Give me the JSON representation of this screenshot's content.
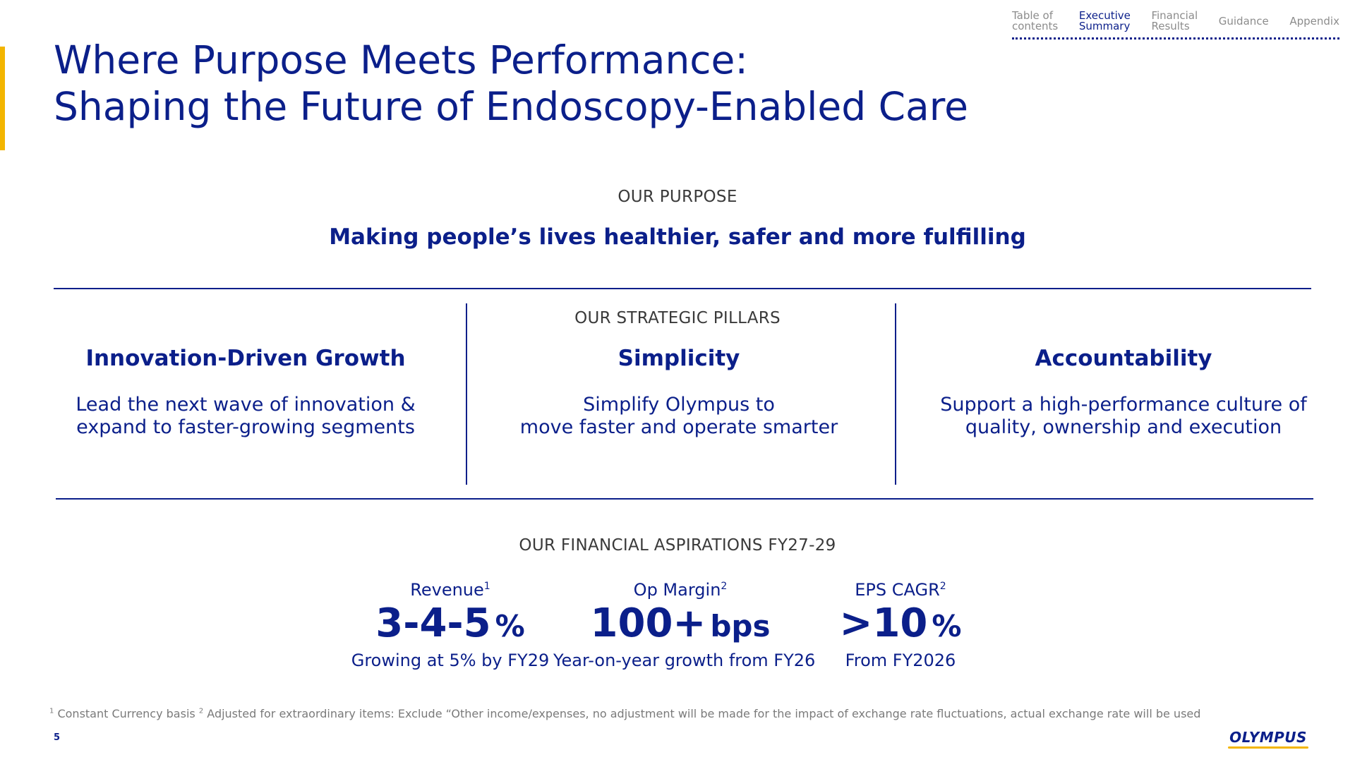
{
  "nav": {
    "items": [
      {
        "label": "Table of\ncontents",
        "active": false
      },
      {
        "label": "Executive\nSummary",
        "active": true
      },
      {
        "label": "Financial\nResults",
        "active": false
      },
      {
        "label": "Guidance",
        "active": false
      },
      {
        "label": "Appendix",
        "active": false
      }
    ]
  },
  "title": {
    "line1": "Where Purpose Meets Performance:",
    "line2": "Shaping the Future of Endoscopy-Enabled Care"
  },
  "purpose": {
    "label": "OUR PURPOSE",
    "text": "Making people’s lives healthier, safer and more fulfilling"
  },
  "pillars": {
    "label": "OUR STRATEGIC PILLARS",
    "items": [
      {
        "title": "Innovation-Driven Growth",
        "description": "Lead the next wave of innovation &\nexpand to faster-growing segments"
      },
      {
        "title": "Simplicity",
        "description": "Simplify Olympus to\nmove faster and operate smarter"
      },
      {
        "title": "Accountability",
        "description": "Support a high-performance culture of\nquality, ownership and execution"
      }
    ]
  },
  "aspirations": {
    "label": "OUR FINANCIAL ASPIRATIONS FY27-29",
    "metrics": [
      {
        "label": "Revenue",
        "sup": "1",
        "value": "3-4-5",
        "unit": "%",
        "note": "Growing at 5% by FY29"
      },
      {
        "label": "Op Margin",
        "sup": "2",
        "value": "100+",
        "unit": "bps",
        "note": "Year-on-year growth from FY26"
      },
      {
        "label": "EPS CAGR",
        "sup": "2",
        "value": ">10",
        "unit": "%",
        "note": "From FY2026"
      }
    ]
  },
  "footnote": {
    "sup1": "1",
    "text1": " Constant Currency basis ",
    "sup2": "2",
    "text2": " Adjusted for extraordinary items: Exclude “Other income/expenses, no adjustment will be made for the impact of exchange rate fluctuations, actual exchange rate will be used"
  },
  "page_number": "5",
  "logo": {
    "text": "OLYMPUS"
  },
  "colors": {
    "navy": "#0b1f8a",
    "accent": "#f3b500",
    "muted": "#8c8c8c"
  }
}
